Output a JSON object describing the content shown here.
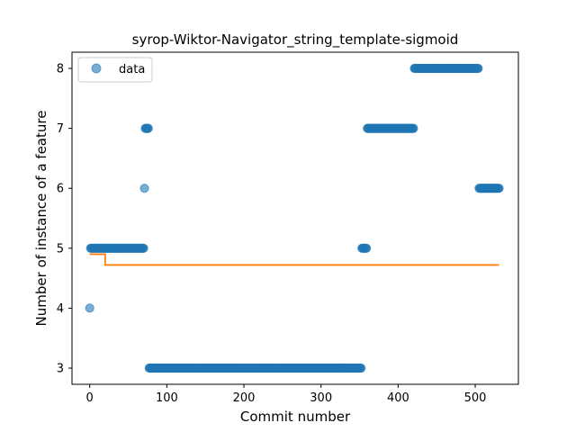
{
  "chart_data": {
    "type": "scatter",
    "title": "syrop-Wiktor-Navigator_string_template-sigmoid",
    "xlabel": "Commit number",
    "ylabel": "Number of instance of a feature",
    "xlim": [
      -23,
      556
    ],
    "ylim": [
      2.73,
      8.27
    ],
    "xticks": [
      0,
      100,
      200,
      300,
      400,
      500
    ],
    "yticks": [
      3,
      4,
      5,
      6,
      7,
      8
    ],
    "grid": false,
    "legend": {
      "placement": "top-left",
      "entries": [
        "data"
      ]
    },
    "colors": {
      "data": "#1f77b4",
      "fit": "#ff7f0e"
    },
    "series": [
      {
        "name": "data",
        "kind": "scatter",
        "runs": [
          {
            "x_start": 0,
            "x_end": 0,
            "y": 4
          },
          {
            "x_start": 1,
            "x_end": 70,
            "y": 5
          },
          {
            "x_start": 71,
            "x_end": 71,
            "y": 6
          },
          {
            "x_start": 72,
            "x_end": 76,
            "y": 7
          },
          {
            "x_start": 77,
            "x_end": 352,
            "y": 3
          },
          {
            "x_start": 353,
            "x_end": 359,
            "y": 5
          },
          {
            "x_start": 360,
            "x_end": 420,
            "y": 7
          },
          {
            "x_start": 421,
            "x_end": 504,
            "y": 8
          },
          {
            "x_start": 505,
            "x_end": 531,
            "y": 6
          }
        ]
      },
      {
        "kind": "line",
        "points": [
          [
            0,
            4.9
          ],
          [
            20,
            4.9
          ],
          [
            20,
            4.72
          ],
          [
            531,
            4.72
          ]
        ]
      }
    ]
  }
}
